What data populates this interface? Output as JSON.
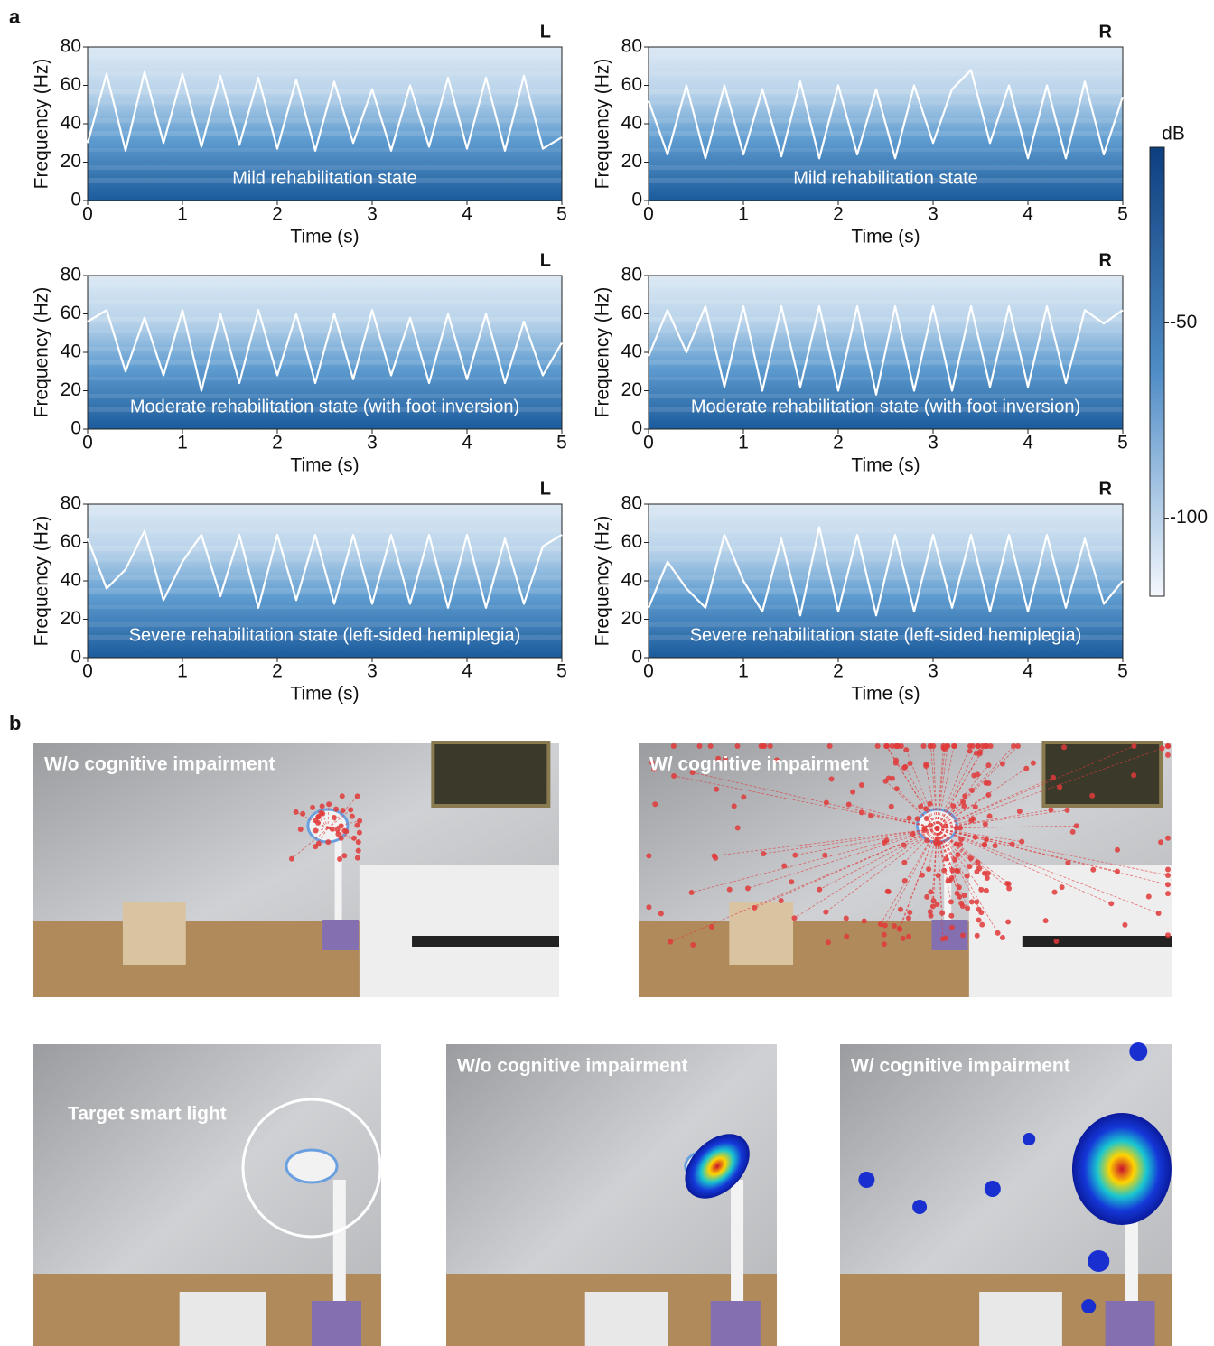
{
  "panel_labels": [
    "a",
    "b"
  ],
  "chart_data": [
    {
      "type": "line",
      "title": "L",
      "annotation": "Mild rehabilitation state",
      "x_label": "Time (s)",
      "y_label": "Frequency (Hz)",
      "x": [
        0,
        0.2,
        0.4,
        0.6,
        0.8,
        1,
        1.2,
        1.4,
        1.6,
        1.8,
        2,
        2.2,
        2.4,
        2.6,
        2.8,
        3,
        3.2,
        3.4,
        3.6,
        3.8,
        4,
        4.2,
        4.4,
        4.6,
        4.8,
        5
      ],
      "series": [
        {
          "color": "#ffffff",
          "values": [
            30,
            66,
            26,
            67,
            30,
            66,
            28,
            65,
            29,
            64,
            27,
            63,
            26,
            62,
            30,
            58,
            26,
            60,
            28,
            64,
            27,
            64,
            26,
            65,
            27,
            33
          ]
        }
      ],
      "xlim": [
        0,
        5
      ],
      "ylim": [
        0,
        80
      ],
      "xticks": [
        0,
        1,
        2,
        3,
        4,
        5
      ],
      "yticks": [
        0,
        20,
        40,
        60,
        80
      ]
    },
    {
      "type": "line",
      "title": "R",
      "annotation": "Mild rehabilitation state",
      "x_label": "Time (s)",
      "y_label": "Frequency (Hz)",
      "x": [
        0,
        0.2,
        0.4,
        0.6,
        0.8,
        1,
        1.2,
        1.4,
        1.6,
        1.8,
        2,
        2.2,
        2.4,
        2.6,
        2.8,
        3,
        3.2,
        3.4,
        3.6,
        3.8,
        4,
        4.2,
        4.4,
        4.6,
        4.8,
        5
      ],
      "series": [
        {
          "color": "#ffffff",
          "values": [
            52,
            24,
            60,
            22,
            60,
            24,
            58,
            23,
            62,
            22,
            60,
            24,
            58,
            22,
            60,
            30,
            58,
            68,
            30,
            60,
            22,
            60,
            22,
            62,
            24,
            54
          ]
        }
      ],
      "xlim": [
        0,
        5
      ],
      "ylim": [
        0,
        80
      ],
      "xticks": [
        0,
        1,
        2,
        3,
        4,
        5
      ],
      "yticks": [
        0,
        20,
        40,
        60,
        80
      ]
    },
    {
      "type": "line",
      "title": "L",
      "annotation": "Moderate rehabilitation state (with foot inversion)",
      "x_label": "Time (s)",
      "y_label": "Frequency (Hz)",
      "x": [
        0,
        0.2,
        0.4,
        0.6,
        0.8,
        1,
        1.2,
        1.4,
        1.6,
        1.8,
        2,
        2.2,
        2.4,
        2.6,
        2.8,
        3,
        3.2,
        3.4,
        3.6,
        3.8,
        4,
        4.2,
        4.4,
        4.6,
        4.8,
        5
      ],
      "series": [
        {
          "color": "#ffffff",
          "values": [
            56,
            62,
            30,
            58,
            28,
            62,
            20,
            60,
            24,
            62,
            28,
            60,
            24,
            60,
            26,
            62,
            28,
            58,
            24,
            60,
            26,
            60,
            24,
            56,
            28,
            45
          ]
        }
      ],
      "xlim": [
        0,
        5
      ],
      "ylim": [
        0,
        80
      ],
      "xticks": [
        0,
        1,
        2,
        3,
        4,
        5
      ],
      "yticks": [
        0,
        20,
        40,
        60,
        80
      ]
    },
    {
      "type": "line",
      "title": "R",
      "annotation": "Moderate rehabilitation state (with foot inversion)",
      "x_label": "Time (s)",
      "y_label": "Frequency (Hz)",
      "x": [
        0,
        0.2,
        0.4,
        0.6,
        0.8,
        1,
        1.2,
        1.4,
        1.6,
        1.8,
        2,
        2.2,
        2.4,
        2.6,
        2.8,
        3,
        3.2,
        3.4,
        3.6,
        3.8,
        4,
        4.2,
        4.4,
        4.6,
        4.8,
        5
      ],
      "series": [
        {
          "color": "#ffffff",
          "values": [
            38,
            62,
            40,
            64,
            22,
            64,
            20,
            64,
            22,
            64,
            20,
            64,
            18,
            64,
            20,
            64,
            20,
            64,
            22,
            64,
            22,
            64,
            24,
            62,
            55,
            62
          ]
        }
      ],
      "xlim": [
        0,
        5
      ],
      "ylim": [
        0,
        80
      ],
      "xticks": [
        0,
        1,
        2,
        3,
        4,
        5
      ],
      "yticks": [
        0,
        20,
        40,
        60,
        80
      ]
    },
    {
      "type": "line",
      "title": "L",
      "annotation": "Severe rehabilitation state (left-sided hemiplegia)",
      "x_label": "Time (s)",
      "y_label": "Frequency (Hz)",
      "x": [
        0,
        0.2,
        0.4,
        0.6,
        0.8,
        1,
        1.2,
        1.4,
        1.6,
        1.8,
        2,
        2.2,
        2.4,
        2.6,
        2.8,
        3,
        3.2,
        3.4,
        3.6,
        3.8,
        4,
        4.2,
        4.4,
        4.6,
        4.8,
        5
      ],
      "series": [
        {
          "color": "#ffffff",
          "values": [
            62,
            36,
            46,
            66,
            30,
            50,
            64,
            32,
            64,
            26,
            64,
            30,
            64,
            28,
            64,
            28,
            64,
            28,
            64,
            26,
            64,
            26,
            62,
            28,
            58,
            64
          ]
        }
      ],
      "xlim": [
        0,
        5
      ],
      "ylim": [
        0,
        80
      ],
      "xticks": [
        0,
        1,
        2,
        3,
        4,
        5
      ],
      "yticks": [
        0,
        20,
        40,
        60,
        80
      ]
    },
    {
      "type": "line",
      "title": "R",
      "annotation": "Severe rehabilitation state (left-sided hemiplegia)",
      "x_label": "Time (s)",
      "y_label": "Frequency (Hz)",
      "x": [
        0,
        0.2,
        0.4,
        0.6,
        0.8,
        1,
        1.2,
        1.4,
        1.6,
        1.8,
        2,
        2.2,
        2.4,
        2.6,
        2.8,
        3,
        3.2,
        3.4,
        3.6,
        3.8,
        4,
        4.2,
        4.4,
        4.6,
        4.8,
        5
      ],
      "series": [
        {
          "color": "#ffffff",
          "values": [
            26,
            50,
            36,
            26,
            64,
            40,
            24,
            62,
            22,
            68,
            24,
            64,
            22,
            64,
            24,
            64,
            26,
            64,
            24,
            64,
            24,
            64,
            26,
            62,
            28,
            40
          ]
        }
      ],
      "xlim": [
        0,
        5
      ],
      "ylim": [
        0,
        80
      ],
      "xticks": [
        0,
        1,
        2,
        3,
        4,
        5
      ],
      "yticks": [
        0,
        20,
        40,
        60,
        80
      ]
    }
  ],
  "colorbar": {
    "label": "dB",
    "clim": [
      -120,
      -5
    ],
    "ticks": [
      -50,
      -100
    ]
  },
  "panel_b": {
    "photos": [
      {
        "label": "W/o cognitive impairment"
      },
      {
        "label": "W/ cognitive impairment"
      },
      {
        "label": "Target smart light"
      },
      {
        "label": "W/o cognitive impairment"
      },
      {
        "label": "W/ cognitive impairment"
      }
    ]
  }
}
